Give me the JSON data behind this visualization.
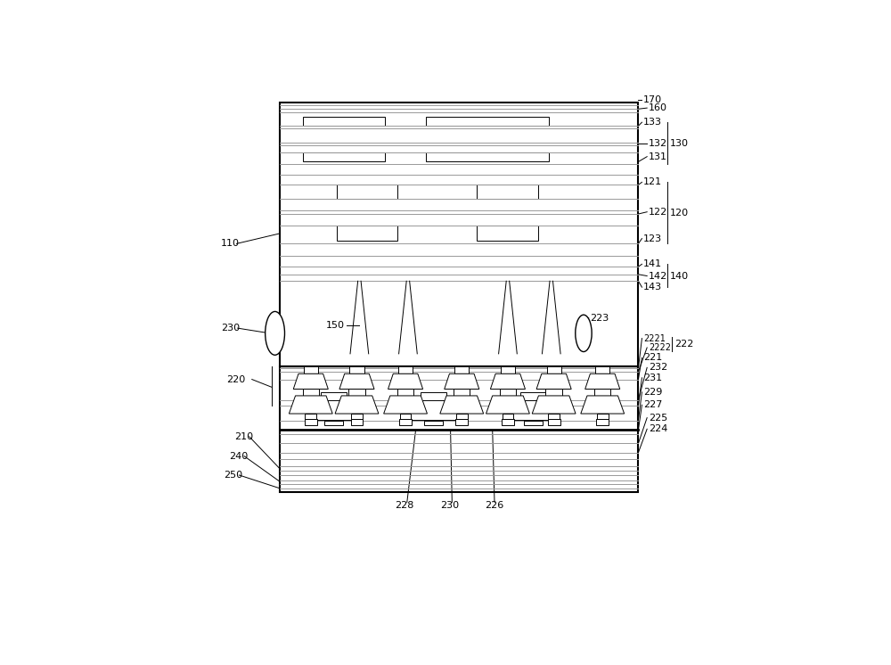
{
  "fig_width": 10.0,
  "fig_height": 7.46,
  "dpi": 100,
  "bg_color": "#ffffff",
  "lc": "#000000",
  "gc": "#999999",
  "UL": 0.155,
  "UR": 0.855,
  "UT": 0.955,
  "UB": 0.44,
  "LL": 0.155,
  "LR": 0.855,
  "LT": 0.44,
  "LB": 0.195,
  "fs": 8.0,
  "fs_sm": 7.0
}
